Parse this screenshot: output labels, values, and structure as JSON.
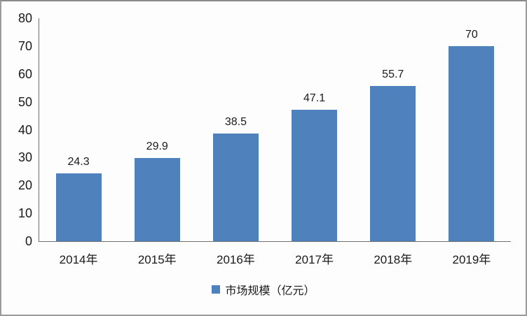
{
  "chart_data": {
    "type": "bar",
    "categories": [
      "2014年",
      "2015年",
      "2016年",
      "2017年",
      "2018年",
      "2019年"
    ],
    "values": [
      24.3,
      29.9,
      38.5,
      47.1,
      55.7,
      70
    ],
    "value_labels": [
      "24.3",
      "29.9",
      "38.5",
      "47.1",
      "55.7",
      "70"
    ],
    "title": "",
    "xlabel": "",
    "ylabel": "",
    "ylim": [
      0,
      80
    ],
    "y_ticks": [
      0,
      10,
      20,
      30,
      40,
      50,
      60,
      70,
      80
    ],
    "grid": false,
    "legend": {
      "label": "市场规模（亿元）",
      "position": "bottom"
    },
    "colors": {
      "bar": "#4F81BD",
      "axis": "#707070",
      "text": "#1a1a1a",
      "background": "#fdfdfd",
      "border": "#9b9b9b"
    }
  }
}
